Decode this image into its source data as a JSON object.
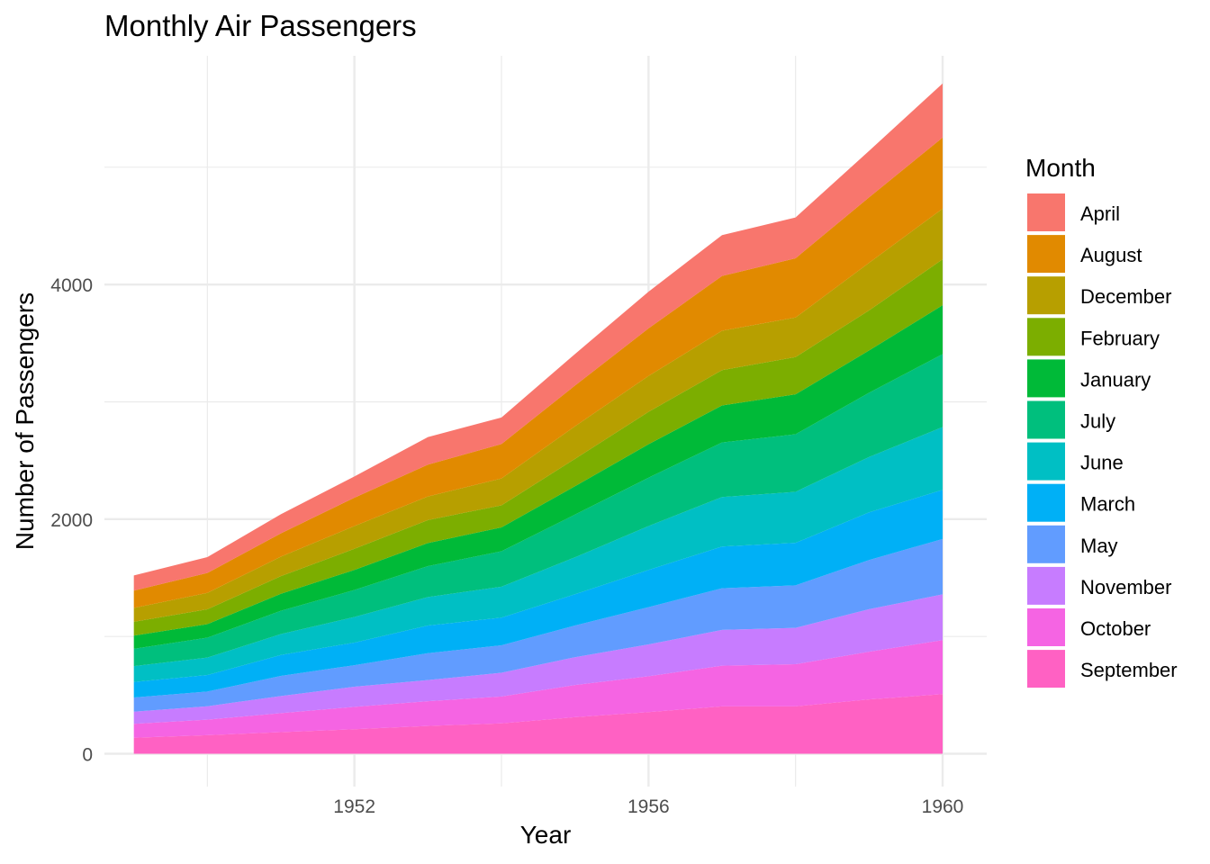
{
  "chart_data": {
    "type": "area",
    "stacked": true,
    "title": "Monthly Air Passengers",
    "xlabel": "Year",
    "ylabel": "Number of Passengers",
    "xlim": [
      1948.6,
      1960.6
    ],
    "ylim": [
      -280,
      5950
    ],
    "x_ticks": [
      1952,
      1956,
      1960
    ],
    "y_ticks": [
      0,
      2000,
      4000
    ],
    "grid": true,
    "legend_title": "Month",
    "legend_position": "right",
    "x": [
      1949,
      1950,
      1951,
      1952,
      1953,
      1954,
      1955,
      1956,
      1957,
      1958,
      1959,
      1960
    ],
    "series": [
      {
        "name": "September",
        "color": "#FF61C3",
        "values": [
          136,
          158,
          184,
          209,
          237,
          259,
          312,
          355,
          404,
          404,
          463,
          508
        ]
      },
      {
        "name": "October",
        "color": "#F564E3",
        "values": [
          119,
          133,
          162,
          191,
          211,
          229,
          274,
          306,
          347,
          359,
          407,
          461
        ]
      },
      {
        "name": "November",
        "color": "#C77CFF",
        "values": [
          104,
          114,
          146,
          172,
          180,
          203,
          237,
          271,
          305,
          310,
          362,
          390
        ]
      },
      {
        "name": "May",
        "color": "#619CFF",
        "values": [
          121,
          125,
          172,
          183,
          229,
          234,
          270,
          318,
          355,
          363,
          420,
          472
        ]
      },
      {
        "name": "March",
        "color": "#00B0F6",
        "values": [
          132,
          141,
          178,
          193,
          236,
          235,
          267,
          317,
          356,
          362,
          406,
          419
        ]
      },
      {
        "name": "June",
        "color": "#00BFC4",
        "values": [
          135,
          149,
          178,
          218,
          243,
          264,
          315,
          374,
          422,
          435,
          472,
          535
        ]
      },
      {
        "name": "July",
        "color": "#00BF7D",
        "values": [
          148,
          170,
          199,
          230,
          264,
          302,
          364,
          413,
          465,
          491,
          548,
          622
        ]
      },
      {
        "name": "January",
        "color": "#00BA38",
        "values": [
          112,
          115,
          145,
          171,
          196,
          204,
          242,
          284,
          315,
          340,
          360,
          417
        ]
      },
      {
        "name": "February",
        "color": "#7CAE00",
        "values": [
          118,
          126,
          150,
          180,
          196,
          188,
          233,
          277,
          301,
          318,
          342,
          391
        ]
      },
      {
        "name": "December",
        "color": "#B79F00",
        "values": [
          118,
          140,
          166,
          194,
          201,
          229,
          278,
          306,
          336,
          337,
          405,
          432
        ]
      },
      {
        "name": "August",
        "color": "#E18A00",
        "values": [
          148,
          170,
          199,
          242,
          272,
          293,
          347,
          405,
          467,
          505,
          559,
          606
        ]
      },
      {
        "name": "April",
        "color": "#F8766D",
        "values": [
          129,
          135,
          163,
          181,
          235,
          227,
          269,
          313,
          348,
          348,
          396,
          461
        ]
      }
    ],
    "legend_order": [
      "April",
      "August",
      "December",
      "February",
      "January",
      "July",
      "June",
      "March",
      "May",
      "November",
      "October",
      "September"
    ]
  }
}
